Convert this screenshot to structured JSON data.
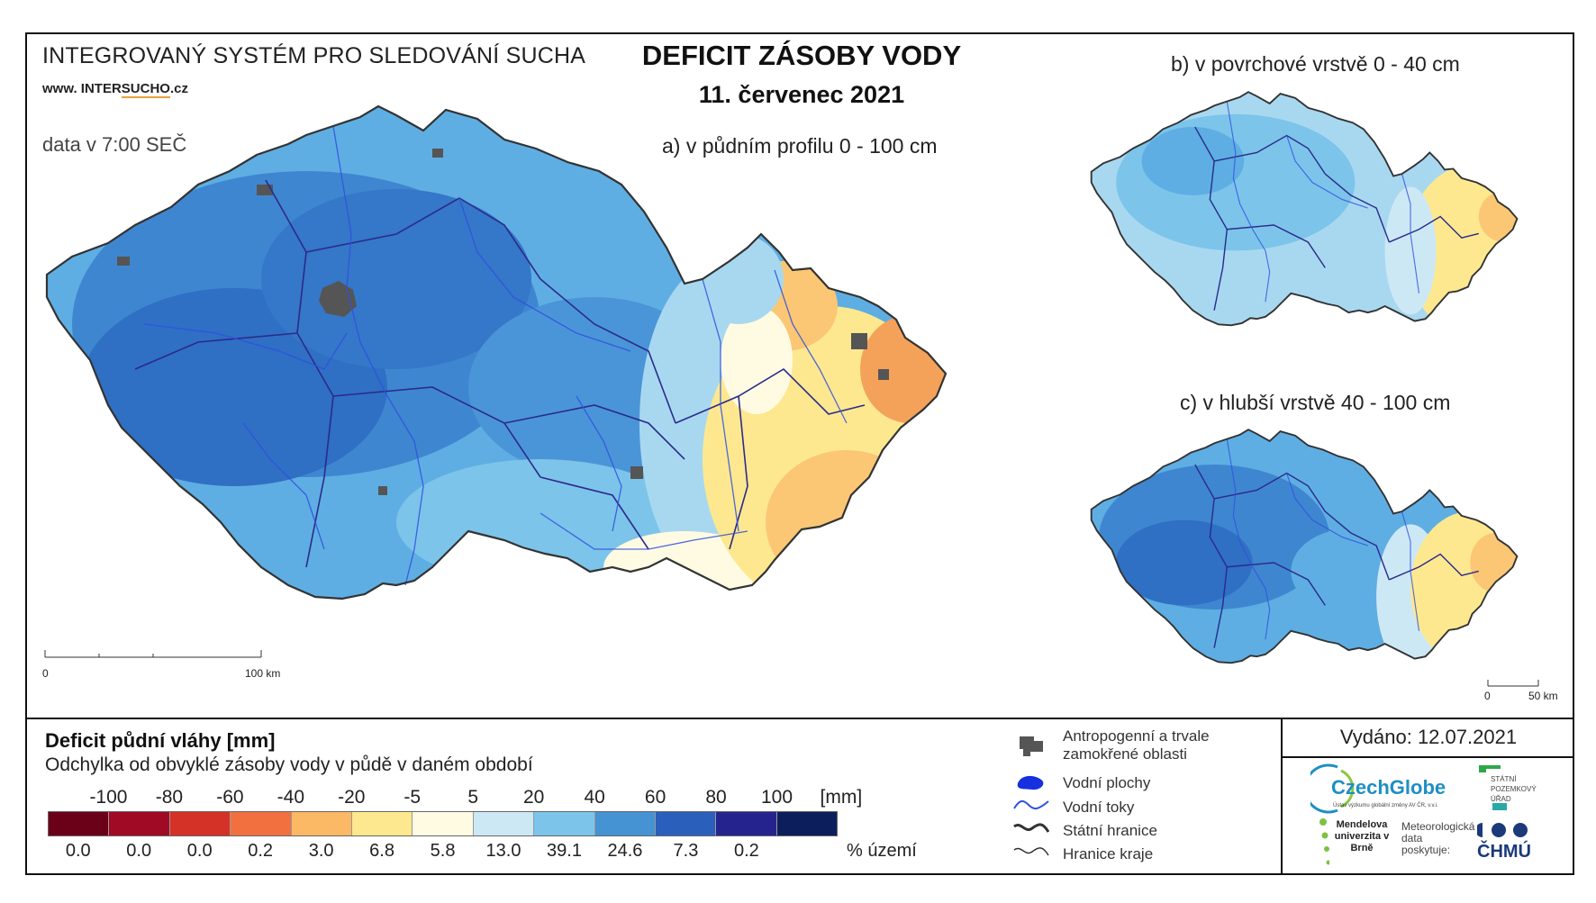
{
  "header": {
    "system_title": "INTEGROVANÝ SYSTÉM PRO SLEDOVÁNÍ SUCHA",
    "website_prefix": "www. INTER",
    "website_highlight": "SUCHO",
    "website_suffix": ".cz",
    "data_time": "data v 7:00 SEČ",
    "title": "DEFICIT ZÁSOBY VODY",
    "date": "11. červenec 2021"
  },
  "maps": {
    "main_label": "a) v půdním profilu 0 - 100 cm",
    "surface_label": "b) v povrchové vrstvě 0 - 40 cm",
    "deep_label": "c) v hlubší vrstvě 40 - 100 cm",
    "main_scale_start": "0",
    "main_scale_end": "100 km",
    "small_scale_start": "0",
    "small_scale_end": "50 km"
  },
  "legend": {
    "title": "Deficit půdní vláhy  [mm]",
    "subtitle": "Odchylka od obvyklé zásoby vody v půdě v daném období",
    "class_breaks": [
      "-100",
      "-80",
      "-60",
      "-40",
      "-20",
      "-5",
      "5",
      "20",
      "40",
      "60",
      "80",
      "100"
    ],
    "unit": "[mm]",
    "colors": [
      "#6b0019",
      "#a10a24",
      "#d43227",
      "#f2703f",
      "#fbb865",
      "#fde890",
      "#fffbe3",
      "#cde8f5",
      "#7cc4ea",
      "#4593d3",
      "#2a5fbb",
      "#25238e",
      "#0c1f5c"
    ],
    "percentages": [
      "0.0",
      "0.0",
      "0.0",
      "0.2",
      "3.0",
      "6.8",
      "5.8",
      "13.0",
      "39.1",
      "24.6",
      "7.3",
      "0.2",
      ""
    ],
    "pct_unit": "% území"
  },
  "symbols": {
    "urban": "Antropogenní a trvale zamokřené oblasti",
    "water_bodies": "Vodní plochy",
    "rivers": "Vodní toky",
    "state_border": "Státní hranice",
    "region_border": "Hranice kraje"
  },
  "issued": "Vydáno: 12.07.2021",
  "logos": {
    "czechglobe": "CzechGlobe",
    "czechglobe_sub": "Ústav výzkumu globální změny AV ČR, v.v.i.",
    "spu": "STÁTNÍ POZEMKOVÝ ÚŘAD",
    "mendel": "Mendelova univerzita v Brně",
    "meteo": "Meteorologická data poskytuje:",
    "chmu": "ČHMÚ"
  }
}
